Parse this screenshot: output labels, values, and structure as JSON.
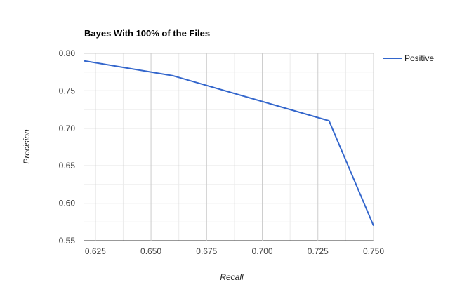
{
  "chart_data": {
    "type": "line",
    "title": "Bayes With 100% of the Files",
    "xlabel": "Recall",
    "ylabel": "Precision",
    "xlim": [
      0.62,
      0.75
    ],
    "ylim": [
      0.55,
      0.8
    ],
    "x_ticks": [
      "0.625",
      "0.650",
      "0.675",
      "0.700",
      "0.725",
      "0.750"
    ],
    "y_ticks": [
      "0.55",
      "0.60",
      "0.65",
      "0.70",
      "0.75",
      "0.80"
    ],
    "grid": true,
    "legend_position": "right",
    "series": [
      {
        "name": "Positive",
        "color": "#3366cc",
        "x": [
          0.62,
          0.66,
          0.73,
          0.75
        ],
        "y": [
          0.79,
          0.77,
          0.71,
          0.57
        ]
      }
    ]
  }
}
